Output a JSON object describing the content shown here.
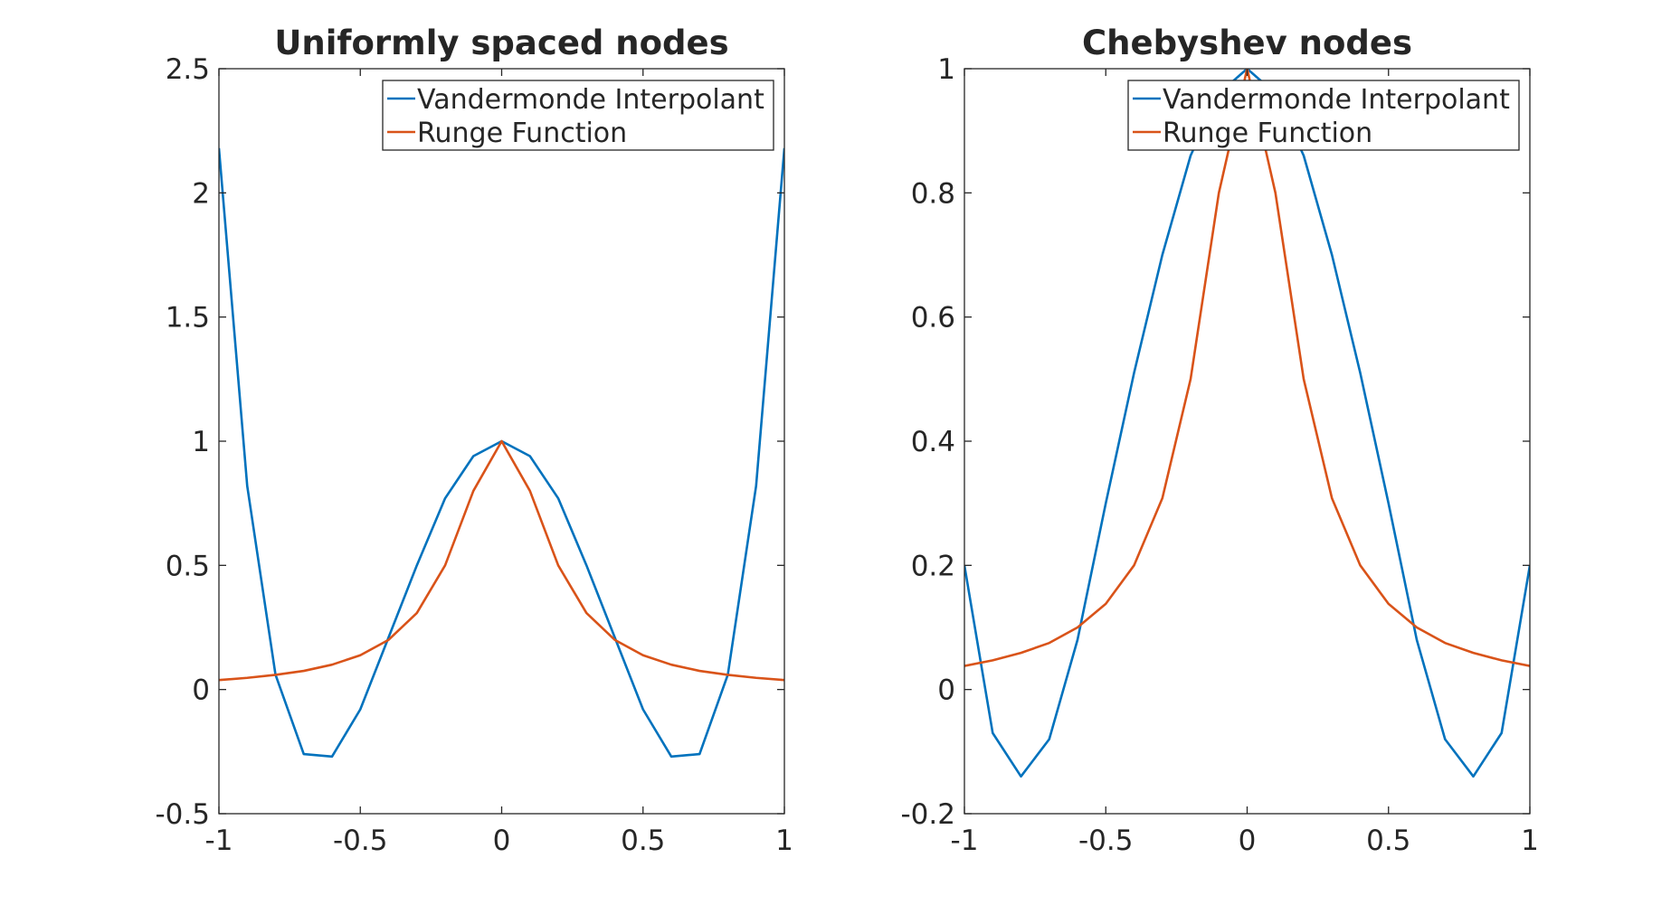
{
  "chart_data": [
    {
      "type": "line",
      "title": "Uniformly spaced nodes",
      "xlabel": "",
      "ylabel": "",
      "xlim": [
        -1,
        1
      ],
      "ylim": [
        -0.5,
        2.5
      ],
      "xticks": [
        "-1",
        "-0.5",
        "0",
        "0.5",
        "1"
      ],
      "yticks": [
        "-0.5",
        "0",
        "0.5",
        "1",
        "1.5",
        "2",
        "2.5"
      ],
      "legend_position": "top-right",
      "grid": false,
      "x": [
        -1,
        -0.9,
        -0.8,
        -0.7,
        -0.6,
        -0.5,
        -0.4,
        -0.3,
        -0.2,
        -0.1,
        0,
        0.1,
        0.2,
        0.3,
        0.4,
        0.5,
        0.6,
        0.7,
        0.8,
        0.9,
        1
      ],
      "series": [
        {
          "name": "Vandermonde Interpolant",
          "color": "#0072BD",
          "values": [
            2.18,
            0.82,
            0.06,
            -0.26,
            -0.27,
            -0.08,
            0.21,
            0.5,
            0.77,
            0.94,
            1.0,
            0.94,
            0.77,
            0.5,
            0.21,
            -0.08,
            -0.27,
            -0.26,
            0.06,
            0.82,
            2.18
          ]
        },
        {
          "name": "Runge Function",
          "color": "#D95319",
          "values": [
            0.038,
            0.047,
            0.059,
            0.075,
            0.1,
            0.138,
            0.2,
            0.308,
            0.5,
            0.8,
            1.0,
            0.8,
            0.5,
            0.308,
            0.2,
            0.138,
            0.1,
            0.075,
            0.059,
            0.047,
            0.038
          ]
        }
      ]
    },
    {
      "type": "line",
      "title": "Chebyshev nodes",
      "xlabel": "",
      "ylabel": "",
      "xlim": [
        -1,
        1
      ],
      "ylim": [
        -0.2,
        1
      ],
      "xticks": [
        "-1",
        "-0.5",
        "0",
        "0.5",
        "1"
      ],
      "yticks": [
        "-0.2",
        "0",
        "0.2",
        "0.4",
        "0.6",
        "0.8",
        "1"
      ],
      "legend_position": "top-right",
      "grid": false,
      "x": [
        -1,
        -0.9,
        -0.8,
        -0.7,
        -0.6,
        -0.5,
        -0.4,
        -0.3,
        -0.2,
        -0.1,
        0,
        0.1,
        0.2,
        0.3,
        0.4,
        0.5,
        0.6,
        0.7,
        0.8,
        0.9,
        1
      ],
      "series": [
        {
          "name": "Vandermonde Interpolant",
          "color": "#0072BD",
          "values": [
            0.2,
            -0.07,
            -0.14,
            -0.08,
            0.08,
            0.3,
            0.51,
            0.7,
            0.86,
            0.96,
            1.0,
            0.96,
            0.86,
            0.7,
            0.51,
            0.3,
            0.08,
            -0.08,
            -0.14,
            -0.07,
            0.2
          ]
        },
        {
          "name": "Runge Function",
          "color": "#D95319",
          "values": [
            0.038,
            0.047,
            0.059,
            0.075,
            0.1,
            0.138,
            0.2,
            0.308,
            0.5,
            0.8,
            1.0,
            0.8,
            0.5,
            0.308,
            0.2,
            0.138,
            0.1,
            0.075,
            0.059,
            0.047,
            0.038
          ]
        }
      ]
    }
  ]
}
